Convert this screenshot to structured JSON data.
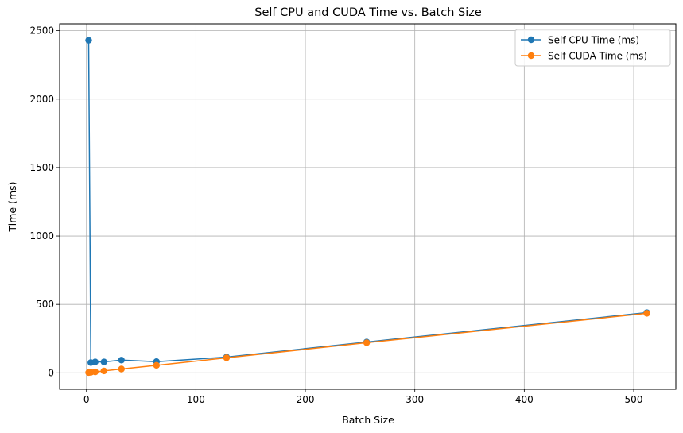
{
  "chart_data": {
    "type": "line",
    "title": "Self CPU and CUDA Time vs. Batch Size",
    "xlabel": "Batch Size",
    "ylabel": "Time (ms)",
    "xlim": [
      -24.5,
      538.5
    ],
    "ylim": [
      -120,
      2550
    ],
    "xticks": [
      0,
      100,
      200,
      300,
      400,
      500
    ],
    "yticks": [
      0,
      500,
      1000,
      1500,
      2000,
      2500
    ],
    "grid": true,
    "legend_position": "top-right",
    "x": [
      2,
      4,
      8,
      16,
      32,
      64,
      128,
      256,
      512
    ],
    "series": [
      {
        "name": "Self CPU Time (ms)",
        "color": "#1f77b4",
        "values": [
          2430,
          75,
          80,
          80,
          93,
          82,
          115,
          225,
          440
        ]
      },
      {
        "name": "Self CUDA Time (ms)",
        "color": "#ff7f0e",
        "values": [
          2,
          4,
          7,
          14,
          28,
          55,
          110,
          220,
          435
        ]
      }
    ]
  }
}
